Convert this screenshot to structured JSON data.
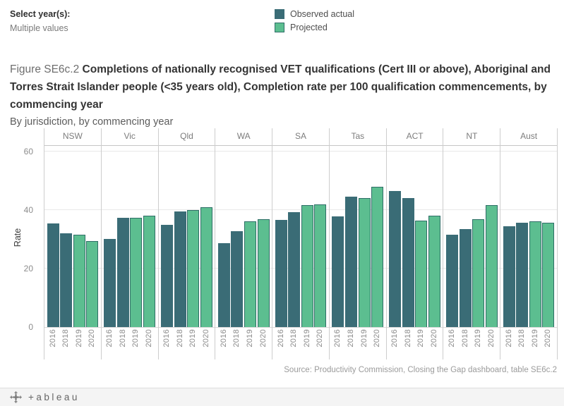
{
  "filter": {
    "label": "Select year(s):",
    "value": "Multiple values"
  },
  "legend": {
    "items": [
      {
        "label": "Observed actual",
        "color": "#3a6c76",
        "border": "#3a6c76"
      },
      {
        "label": "Projected",
        "color": "#5cbe90",
        "border": "#2f6e67"
      }
    ]
  },
  "title": {
    "prefix": "Figure SE6c.2 ",
    "main": "Completions of nationally recognised VET qualifications (Cert III or above), Aboriginal and Torres Strait Islander people (<35 years old), Completion rate per 100 qualification commencements, by commencing year",
    "subtitle": "By jurisdiction, by commencing year"
  },
  "source": "Source: Productivity Commission, Closing the Gap dashboard, table SE6c.2",
  "footer": {
    "brand": "+ableau"
  },
  "chart_data": {
    "type": "bar",
    "title": "Figure SE6c.2 Completions of nationally recognised VET qualifications (Cert III or above), Aboriginal and Torres Strait Islander people (<35 years old), Completion rate per 100 qualification commencements, by commencing year",
    "subtitle": "By jurisdiction, by commencing year",
    "ylabel": "Rate",
    "ylim": [
      0,
      62
    ],
    "yticks": [
      0,
      20,
      40,
      60
    ],
    "grid": true,
    "legend_position": "top",
    "categories": [
      "2016",
      "2018",
      "2019",
      "2020"
    ],
    "year_series": {
      "2016": "Observed actual",
      "2018": "Observed actual",
      "2019": "Projected",
      "2020": "Projected"
    },
    "series": [
      {
        "name": "Observed actual",
        "color": "#3a6c76"
      },
      {
        "name": "Projected",
        "color": "#5cbe90",
        "border_color": "#2f6e67"
      }
    ],
    "panels": [
      {
        "jurisdiction": "NSW",
        "values": [
          35.4,
          32.2,
          31.6,
          29.4
        ]
      },
      {
        "jurisdiction": "Vic",
        "values": [
          30.2,
          37.4,
          37.3,
          38.0
        ]
      },
      {
        "jurisdiction": "Qld",
        "values": [
          35.0,
          39.5,
          40.0,
          40.9
        ]
      },
      {
        "jurisdiction": "WA",
        "values": [
          28.6,
          32.9,
          36.3,
          36.8
        ]
      },
      {
        "jurisdiction": "SA",
        "values": [
          36.6,
          39.4,
          41.7,
          42.0
        ]
      },
      {
        "jurisdiction": "Tas",
        "values": [
          37.9,
          44.6,
          44.1,
          48.0
        ]
      },
      {
        "jurisdiction": "ACT",
        "values": [
          46.5,
          44.2,
          36.5,
          38.0
        ]
      },
      {
        "jurisdiction": "NT",
        "values": [
          31.7,
          33.5,
          37.0,
          41.8
        ]
      },
      {
        "jurisdiction": "Aust",
        "values": [
          34.5,
          35.7,
          36.1,
          35.7
        ]
      }
    ],
    "source": "Source: Productivity Commission, Closing the Gap dashboard, table SE6c.2"
  }
}
